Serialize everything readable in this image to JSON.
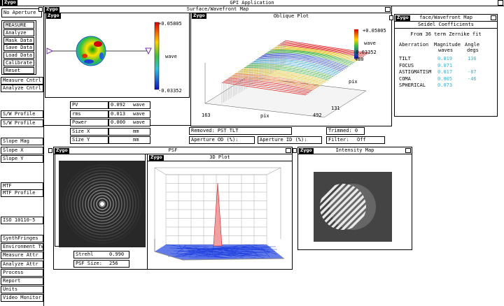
{
  "app_title": "GPI Application",
  "logo": "Zygo",
  "sidebar": {
    "aperture": "No Aperture",
    "group": [
      "MEASURE",
      "Analyze",
      "Mask Data",
      "Save Data",
      "Load Data",
      "Calibrate",
      "Reset"
    ],
    "buttons": [
      "Measure Cntrl",
      "Analyze Cntrl",
      "S/W Profile",
      "S/W Profile",
      "Slope Mag",
      "Slope X",
      "Slope Y",
      "MTF",
      "MTF Profile",
      "ISO 10110-5",
      "SynthFringes",
      "Environment Tw",
      "Measure Attr",
      "Analyze Attr",
      "Process",
      "Report",
      "Units",
      "Video Monitor"
    ]
  },
  "surface_map": {
    "title": "Surface/Wavefront Map",
    "max": "+0.05805",
    "unit": "wave",
    "min": "-0.03352"
  },
  "oblique_plot": {
    "title": "Oblique Plot",
    "max": "+0.05805",
    "unit": "wave",
    "min": "-0.03352",
    "z_tick": "480",
    "y_label": "pix",
    "x_start": "163",
    "x_label": "pix",
    "x_end": "492",
    "y_tick": "131"
  },
  "results": [
    {
      "label": "PV",
      "value": "0.092",
      "unit": "wave"
    },
    {
      "label": "rms",
      "value": "0.013",
      "unit": "wave"
    },
    {
      "label": "Power",
      "value": "0.000",
      "unit": "wave"
    },
    {
      "label": "Size X",
      "unit": "mm"
    },
    {
      "label": "Size Y",
      "unit": "mm"
    }
  ],
  "status": {
    "removed": "Removed: PST TLT",
    "trimmed": "Trimmed: 0",
    "aperture_od": "Aperture OD (%):",
    "aperture_id": "Aperture ID (%):",
    "filter_label": "Filter:",
    "filter": "Off"
  },
  "seidel": {
    "window_title": "face/Wavefront Map",
    "title": "Seidel Coefficients",
    "note": "From 36 term Zernike fit",
    "headers": [
      "Aberration",
      "Magnitude",
      "waves",
      "Angle",
      "degs"
    ],
    "rows": [
      [
        "TILT",
        "0.019",
        "136"
      ],
      [
        "FOCUS",
        "0.071"
      ],
      [
        "ASTIGMATISM",
        "0.017",
        "-87"
      ],
      [
        "COMA",
        "0.005",
        "-46"
      ],
      [
        "SPHERICAL",
        "0.073"
      ]
    ]
  },
  "psf": {
    "title": "PSF",
    "strehl_label": "Strehl",
    "strehl": "0.990",
    "size_label": "PSF Size:",
    "size": "256"
  },
  "plot3d": {
    "title": "3D Plot"
  },
  "intensity": {
    "title": "Intensity Map"
  }
}
